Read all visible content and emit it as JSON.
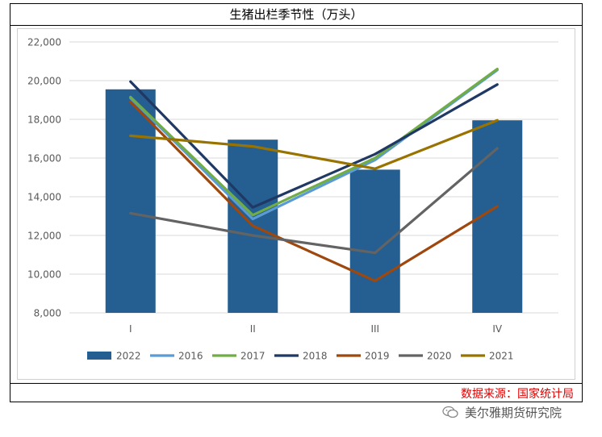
{
  "source_text": "数据来源：国家统计局",
  "watermark": {
    "icon": "wechat-icon",
    "text": "美尔雅期货研究院"
  },
  "chart_data": {
    "type": "bar",
    "title": "生猪出栏季节性（万头）",
    "categories": [
      "I",
      "II",
      "III",
      "IV"
    ],
    "ylim": [
      8000,
      22000
    ],
    "yticks": [
      8000,
      10000,
      12000,
      14000,
      16000,
      18000,
      20000,
      22000
    ],
    "ytick_labels": [
      "8,000",
      "10,000",
      "12,000",
      "14,000",
      "16,000",
      "18,000",
      "20,000",
      "22,000"
    ],
    "grid": true,
    "legend_position": "bottom",
    "bar_series": {
      "name": "2022",
      "color": "#255e91",
      "values": [
        19550,
        16950,
        15400,
        17950
      ]
    },
    "line_series": [
      {
        "name": "2016",
        "color": "#5b9bd5",
        "values": [
          19100,
          12850,
          15900,
          20550
        ]
      },
      {
        "name": "2017",
        "color": "#70ad47",
        "values": [
          19150,
          13050,
          16000,
          20600
        ]
      },
      {
        "name": "2018",
        "color": "#1f3864",
        "values": [
          19950,
          13450,
          16200,
          19800
        ]
      },
      {
        "name": "2019",
        "color": "#9e480e",
        "values": [
          18900,
          12500,
          9650,
          13500
        ]
      },
      {
        "name": "2020",
        "color": "#636363",
        "values": [
          13150,
          12000,
          11100,
          16500
        ]
      },
      {
        "name": "2021",
        "color": "#997300",
        "values": [
          17150,
          16600,
          15450,
          17950
        ]
      }
    ]
  }
}
